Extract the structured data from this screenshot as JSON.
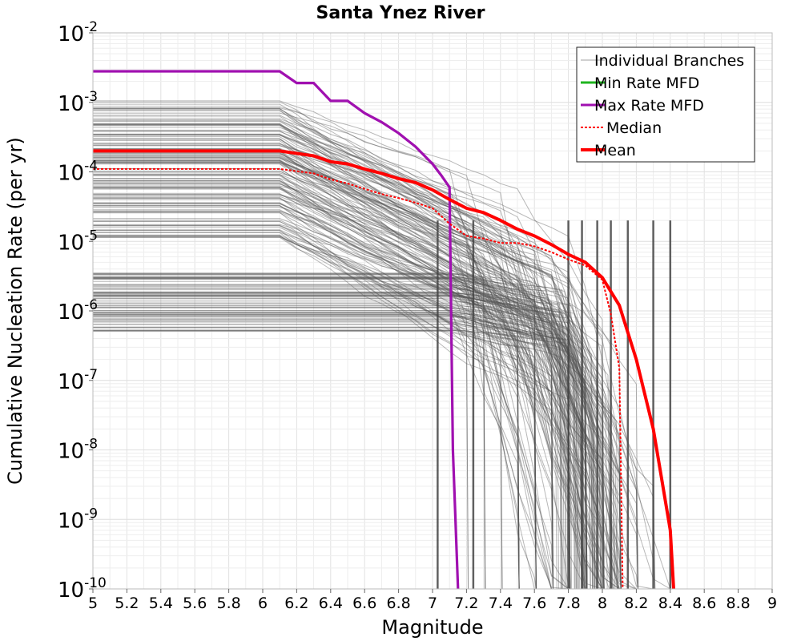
{
  "chart_data": {
    "type": "line",
    "title": "Santa Ynez River",
    "xlabel": "Magnitude",
    "ylabel": "Cumulative Nucleation Rate (per yr)",
    "xlim": [
      5,
      9
    ],
    "ylim_log10": [
      -10,
      -2
    ],
    "y_scale": "log",
    "grid": true,
    "legend_position": "top-right",
    "x_ticks": [
      "5",
      "5.2",
      "5.4",
      "5.6",
      "5.8",
      "6",
      "6.2",
      "6.4",
      "6.6",
      "6.8",
      "7",
      "7.2",
      "7.4",
      "7.6",
      "7.8",
      "8",
      "8.2",
      "8.4",
      "8.6",
      "8.8",
      "9"
    ],
    "y_ticks": [
      {
        "base": "10",
        "exp": "-2"
      },
      {
        "base": "10",
        "exp": "-3"
      },
      {
        "base": "10",
        "exp": "-4"
      },
      {
        "base": "10",
        "exp": "-5"
      },
      {
        "base": "10",
        "exp": "-6"
      },
      {
        "base": "10",
        "exp": "-7"
      },
      {
        "base": "10",
        "exp": "-8"
      },
      {
        "base": "10",
        "exp": "-9"
      },
      {
        "base": "10",
        "exp": "-10"
      }
    ],
    "legend": [
      {
        "label": "Individual Branches",
        "color": "#a0a0a0",
        "style": "thin"
      },
      {
        "label": "Min Rate MFD",
        "color": "#1fb51f",
        "style": "solid"
      },
      {
        "label": "Max Rate MFD",
        "color": "#a010b0",
        "style": "solid"
      },
      {
        "label": "Median",
        "color": "#ff0000",
        "style": "dotted"
      },
      {
        "label": "Mean",
        "color": "#ff0000",
        "style": "thick"
      }
    ],
    "series": [
      {
        "name": "Max Rate MFD",
        "color": "#a010b0",
        "points": [
          [
            5.0,
            0.0028
          ],
          [
            6.1,
            0.0028
          ],
          [
            6.2,
            0.0019
          ],
          [
            6.3,
            0.0019
          ],
          [
            6.4,
            0.00105
          ],
          [
            6.5,
            0.00105
          ],
          [
            6.6,
            0.0007
          ],
          [
            6.7,
            0.00052
          ],
          [
            6.8,
            0.00036
          ],
          [
            6.9,
            0.00023
          ],
          [
            7.0,
            0.00013
          ],
          [
            7.05,
            9e-05
          ],
          [
            7.1,
            6e-05
          ],
          [
            7.12,
            1e-08
          ],
          [
            7.15,
            1e-10
          ]
        ]
      },
      {
        "name": "Mean",
        "color": "#ff0000",
        "points": [
          [
            5.0,
            0.0002
          ],
          [
            6.1,
            0.0002
          ],
          [
            6.3,
            0.00017
          ],
          [
            6.4,
            0.00014
          ],
          [
            6.5,
            0.00013
          ],
          [
            6.6,
            0.00011
          ],
          [
            6.7,
            9.5e-05
          ],
          [
            6.8,
            8e-05
          ],
          [
            6.9,
            7e-05
          ],
          [
            7.0,
            5.5e-05
          ],
          [
            7.1,
            4e-05
          ],
          [
            7.2,
            3e-05
          ],
          [
            7.3,
            2.6e-05
          ],
          [
            7.4,
            2e-05
          ],
          [
            7.5,
            1.5e-05
          ],
          [
            7.6,
            1.2e-05
          ],
          [
            7.7,
            9e-06
          ],
          [
            7.8,
            6.5e-06
          ],
          [
            7.9,
            5e-06
          ],
          [
            8.0,
            3e-06
          ],
          [
            8.1,
            1.2e-06
          ],
          [
            8.2,
            2e-07
          ],
          [
            8.3,
            2e-08
          ],
          [
            8.4,
            7e-10
          ],
          [
            8.42,
            1e-10
          ]
        ]
      },
      {
        "name": "Median",
        "color": "#ff0000",
        "points": [
          [
            5.0,
            0.00011
          ],
          [
            6.1,
            0.00011
          ],
          [
            6.3,
            9.5e-05
          ],
          [
            6.4,
            7.8e-05
          ],
          [
            6.5,
            6.8e-05
          ],
          [
            6.6,
            5.7e-05
          ],
          [
            6.7,
            4.8e-05
          ],
          [
            6.8,
            4.2e-05
          ],
          [
            6.9,
            3.6e-05
          ],
          [
            7.0,
            3e-05
          ],
          [
            7.1,
            1.8e-05
          ],
          [
            7.2,
            1.2e-05
          ],
          [
            7.3,
            1.1e-05
          ],
          [
            7.4,
            9.5e-06
          ],
          [
            7.5,
            9.5e-06
          ],
          [
            7.6,
            8.5e-06
          ],
          [
            7.7,
            7e-06
          ],
          [
            7.8,
            5.5e-06
          ],
          [
            7.9,
            4.5e-06
          ],
          [
            8.0,
            2.8e-06
          ],
          [
            8.05,
            9e-07
          ],
          [
            8.1,
            1.5e-07
          ],
          [
            8.12,
            1e-10
          ]
        ]
      }
    ]
  }
}
